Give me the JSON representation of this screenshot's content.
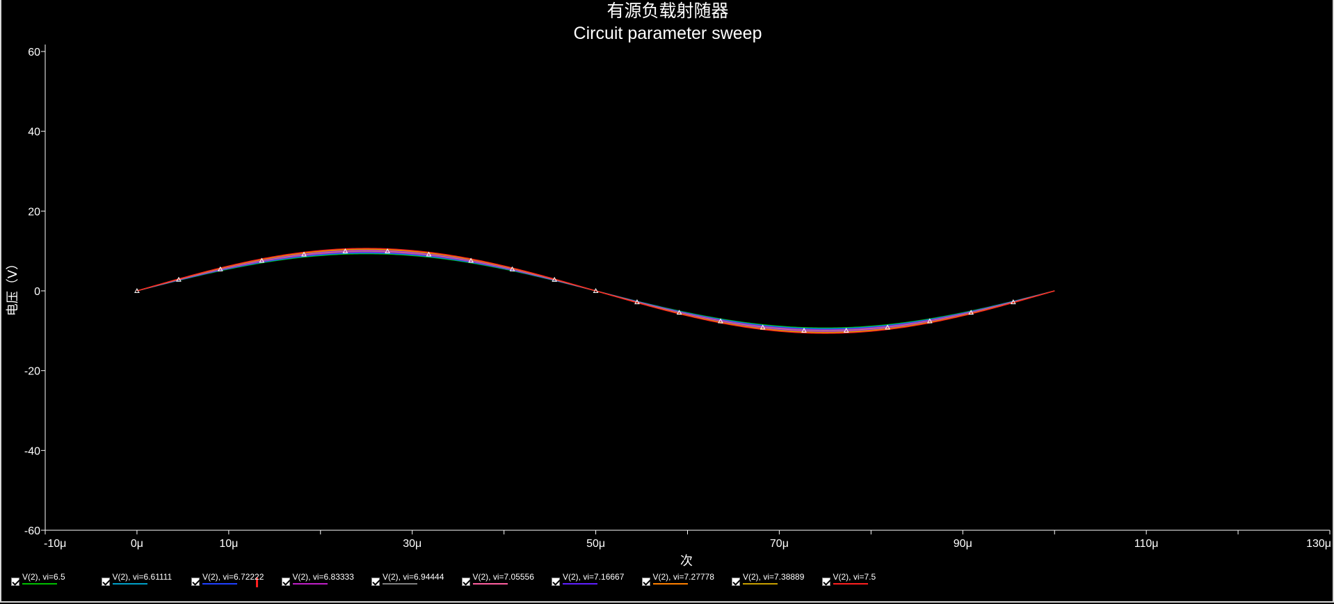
{
  "chart_data": {
    "type": "line",
    "title": "有源负载射随器",
    "subtitle": "Circuit parameter sweep",
    "xlabel": "次",
    "ylabel": "电压（V）",
    "xlim": [
      -10,
      130
    ],
    "ylim": [
      -60,
      60
    ],
    "x_unit": "μ",
    "x_ticks": [
      -10,
      0,
      10,
      30,
      50,
      70,
      90,
      110,
      130
    ],
    "x_tick_labels": [
      "-10μ",
      "0μ",
      "10μ",
      "30μ",
      "50μ",
      "70μ",
      "90μ",
      "110μ",
      "130μ"
    ],
    "y_ticks": [
      60,
      40,
      20,
      0,
      -20,
      -40,
      -60
    ],
    "y_tick_labels": [
      "60",
      "40",
      "20",
      "0",
      "-20",
      "-40",
      "-60"
    ],
    "x_range_data": [
      0,
      100
    ],
    "waveform": "sine",
    "period": 100,
    "grid": false,
    "legend_position": "bottom-left",
    "series": [
      {
        "name": "V(2),  vi=6.5",
        "amplitude": 9.3,
        "color": "#00c000"
      },
      {
        "name": "V(2),  vi=6.61111",
        "amplitude": 9.45,
        "color": "#00a0c8"
      },
      {
        "name": "V(2),  vi=6.72222",
        "amplitude": 9.6,
        "color": "#2040ff"
      },
      {
        "name": "V(2),  vi=6.83333",
        "amplitude": 9.75,
        "color": "#c020c8"
      },
      {
        "name": "V(2),  vi=6.94444",
        "amplitude": 9.9,
        "color": "#808080"
      },
      {
        "name": "V(2),  vi=7.05556",
        "amplitude": 10.05,
        "color": "#ff60a0"
      },
      {
        "name": "V(2),  vi=7.16667",
        "amplitude": 10.2,
        "color": "#6020ff"
      },
      {
        "name": "V(2),  vi=7.27778",
        "amplitude": 10.35,
        "color": "#ff8000"
      },
      {
        "name": "V(2),  vi=7.38889",
        "amplitude": 10.5,
        "color": "#c8a000"
      },
      {
        "name": "V(2),  vi=7.5",
        "amplitude": 10.65,
        "color": "#ff2020"
      }
    ],
    "markers": [
      0,
      4.55,
      9.09,
      13.6,
      18.2,
      22.7,
      27.3,
      31.8,
      36.4,
      40.9,
      45.5,
      50,
      54.5,
      59.1,
      63.6,
      68.2,
      72.7,
      77.3,
      81.8,
      86.4,
      90.9,
      95.5
    ]
  }
}
